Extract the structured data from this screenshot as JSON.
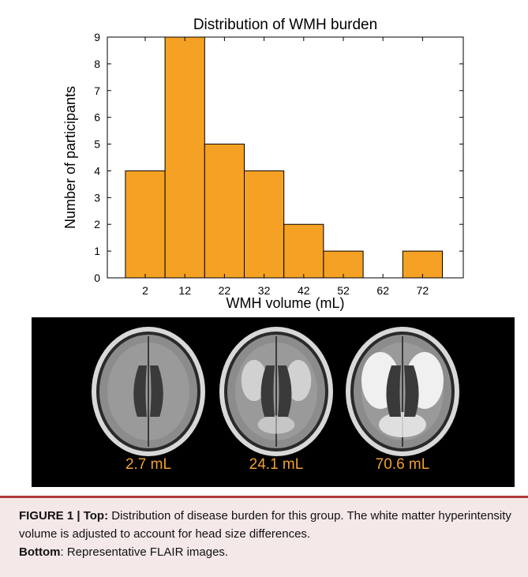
{
  "chart_data": {
    "type": "bar",
    "title": "Distribution of WMH burden",
    "xlabel": "WMH volume (mL)",
    "ylabel": "Number of participants",
    "categories": [
      "2",
      "12",
      "22",
      "32",
      "42",
      "52",
      "62",
      "72"
    ],
    "values": [
      4,
      9,
      5,
      4,
      2,
      1,
      0,
      1
    ],
    "ylim": [
      0,
      9
    ],
    "yticks": [
      0,
      1,
      2,
      3,
      4,
      5,
      6,
      7,
      8,
      9
    ],
    "bar_color": "#f5a123",
    "grid": false
  },
  "panel": {
    "scans": [
      {
        "label": "2.7 mL",
        "severity": 0.1
      },
      {
        "label": "24.1 mL",
        "severity": 0.45
      },
      {
        "label": "70.6 mL",
        "severity": 1.0
      }
    ],
    "label_color": "#f0a030"
  },
  "caption": {
    "figure_label": "FIGURE 1 | ",
    "top_label": "Top:",
    "top_text": " Distribution of disease burden for this group. The white matter hyperintensity volume is adjusted to account for head size differences.",
    "bottom_label": "Bottom",
    "bottom_text": ": Representative FLAIR images.",
    "accent_color": "#b03a3a"
  }
}
